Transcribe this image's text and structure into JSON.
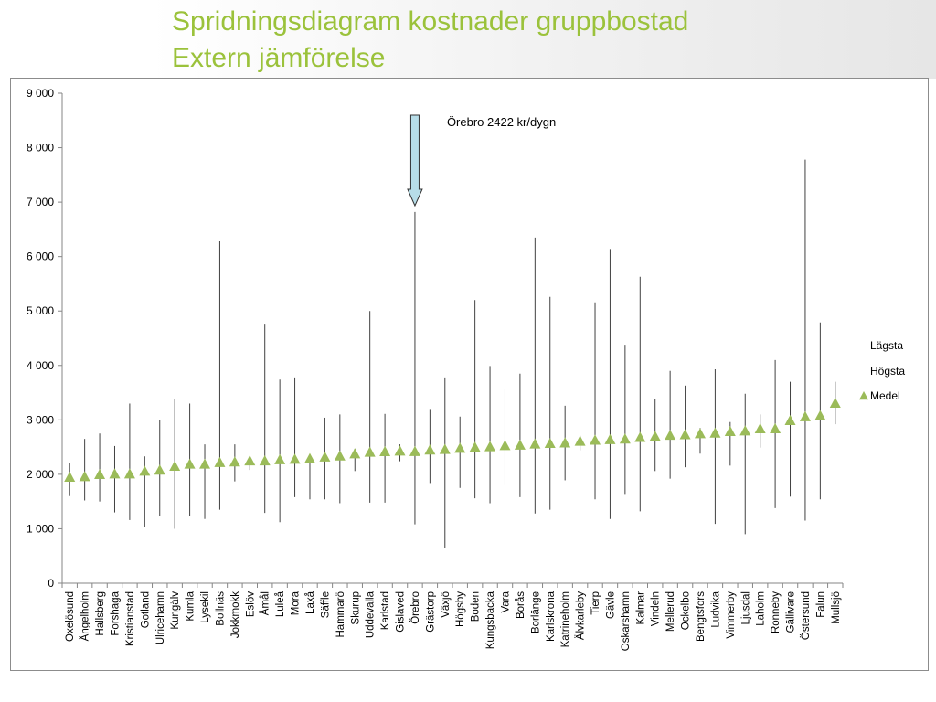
{
  "slide": {
    "title_line1": "Spridningsdiagram kostnader gruppbostad",
    "title_line2": "Extern jämförelse"
  },
  "colors": {
    "title": "#9bc23b",
    "marker": "#9bbb59",
    "line": "#404040",
    "arrow_fill": "#b7dde8"
  },
  "chart_data": {
    "type": "stock",
    "title": "",
    "ylim": [
      0,
      9000
    ],
    "yticks": [
      "0",
      "1 000",
      "2 000",
      "3 000",
      "4 000",
      "5 000",
      "6 000",
      "7 000",
      "8 000",
      "9 000"
    ],
    "ytick_values": [
      0,
      1000,
      2000,
      3000,
      4000,
      5000,
      6000,
      7000,
      8000,
      9000
    ],
    "grid": false,
    "legend_position": "right",
    "legend": [
      {
        "name": "Lägsta",
        "marker": "none"
      },
      {
        "name": "Högsta",
        "marker": "none"
      },
      {
        "name": "Medel",
        "marker": "triangle"
      }
    ],
    "annotation": "Örebro 2422 kr/dygn",
    "annotation_category": "Örebro",
    "categories": [
      "Oxelösund",
      "Ängelholm",
      "Hallsberg",
      "Forshaga",
      "Kristianstad",
      "Gotland",
      "Ulricehamn",
      "Kungälv",
      "Kumla",
      "Lysekil",
      "Bollnäs",
      "Jokkmokk",
      "Eslöv",
      "Åmål",
      "Luleå",
      "Mora",
      "Laxå",
      "Säffle",
      "Hammarö",
      "Skurup",
      "Uddevalla",
      "Karlstad",
      "Gislaved",
      "Örebro",
      "Grästorp",
      "Växjö",
      "Högsby",
      "Boden",
      "Kungsbacka",
      "Vara",
      "Borås",
      "Borlänge",
      "Karlskrona",
      "Katrineholm",
      "Älvkarleby",
      "Tierp",
      "Gävle",
      "Oskarshamn",
      "Kalmar",
      "Vindeln",
      "Mellerud",
      "Ockelbo",
      "Bengtsfors",
      "Ludvika",
      "Vimmerby",
      "Ljusdal",
      "Laholm",
      "Ronneby",
      "Gällivare",
      "Östersund",
      "Falun",
      "Mullsjö"
    ],
    "series": [
      {
        "name": "Lägsta",
        "values": [
          1600,
          1520,
          1500,
          1300,
          1160,
          1040,
          1240,
          1000,
          1230,
          1180,
          1350,
          1870,
          2080,
          1290,
          1120,
          1580,
          1540,
          1540,
          1470,
          2060,
          1480,
          1480,
          2240,
          1080,
          1840,
          650,
          1750,
          1560,
          1470,
          1800,
          1580,
          1280,
          1350,
          1890,
          2440,
          1540,
          1180,
          1640,
          1320,
          2060,
          1920,
          2130,
          2380,
          1090,
          2160,
          900,
          2490,
          1380,
          1590,
          1150,
          1540,
          2920
        ]
      },
      {
        "name": "Högsta",
        "values": [
          2200,
          2650,
          2750,
          2520,
          3300,
          2330,
          3000,
          3380,
          3300,
          2550,
          6280,
          2550,
          2330,
          4750,
          3740,
          3780,
          2350,
          3040,
          3100,
          2470,
          5000,
          3110,
          2550,
          6820,
          3200,
          3780,
          3060,
          5200,
          3990,
          3560,
          3850,
          6350,
          5260,
          3260,
          2710,
          5160,
          6140,
          4380,
          5630,
          3390,
          3900,
          3630,
          2850,
          3930,
          2960,
          3480,
          3100,
          4100,
          3700,
          7780,
          4790,
          3700
        ]
      },
      {
        "name": "Medel",
        "values": [
          1950,
          1960,
          2000,
          2010,
          2010,
          2060,
          2080,
          2150,
          2190,
          2190,
          2220,
          2230,
          2250,
          2250,
          2270,
          2280,
          2290,
          2320,
          2340,
          2380,
          2410,
          2420,
          2430,
          2422,
          2450,
          2460,
          2480,
          2500,
          2510,
          2530,
          2540,
          2560,
          2570,
          2580,
          2610,
          2630,
          2640,
          2650,
          2680,
          2700,
          2720,
          2730,
          2750,
          2760,
          2790,
          2800,
          2840,
          2840,
          2990,
          3060,
          3080,
          3310
        ]
      }
    ]
  }
}
